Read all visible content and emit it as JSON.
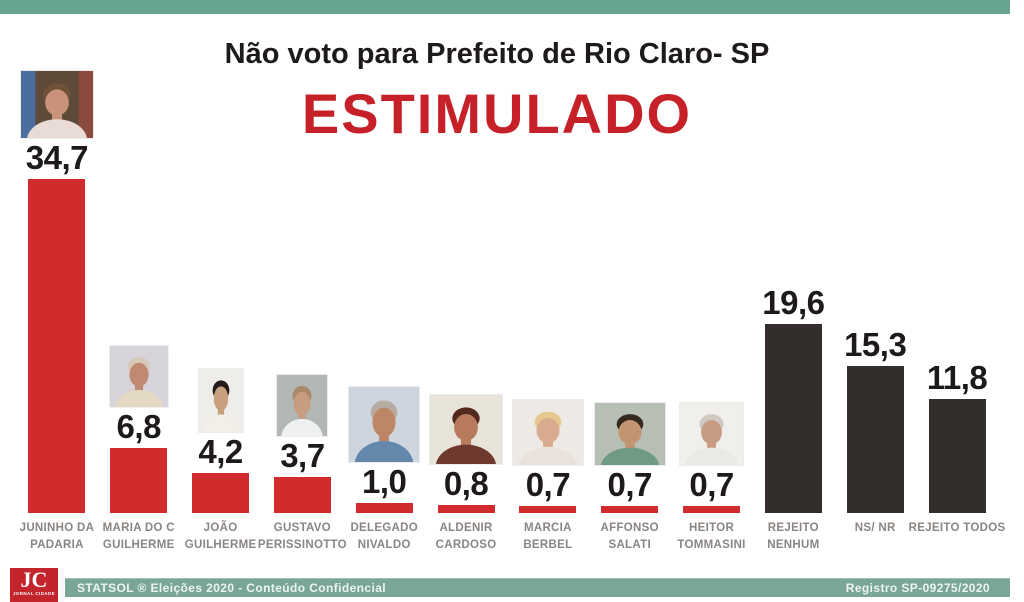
{
  "page": {
    "title": "Não voto para Prefeito de Rio Claro- SP",
    "subtitle": "ESTIMULADO"
  },
  "colors": {
    "band_teal": "#68a492",
    "footer_teal": "#79a699",
    "bar_red": "#d22b2e",
    "bar_dark": "#332e2b",
    "subtitle_red": "#c62128",
    "logo_red": "#c4242b",
    "name_gray": "#8b8582",
    "value_text": "#1d1a19"
  },
  "footer": {
    "left_text": "STATSOL ® Eleições 2020 - Conteúdo Confidencial",
    "right_text": "Registro SP-09275/2020",
    "logo_text": "JC",
    "logo_subtext": "JORNAL CIDADE"
  },
  "chart_data": {
    "type": "bar",
    "title": "Não voto para Prefeito de Rio Claro- SP",
    "subtitle": "ESTIMULADO",
    "unit": "percent",
    "ylim": [
      0,
      36
    ],
    "axis_shown": false,
    "grid": false,
    "legend": "none",
    "decimal_style": "comma",
    "categories": [
      "JUNINHO DA PADARIA",
      "MARIA DO C GUILHERME",
      "JOÃO GUILHERME",
      "GUSTAVO PERISSINOTTO",
      "DELEGADO NIVALDO",
      "ALDENIR CARDOSO",
      "MARCIA BERBEL",
      "AFFONSO SALATI",
      "HEITOR TOMMASINI",
      "REJEITO NENHUM",
      "NS/ NR",
      "REJEITO TODOS"
    ],
    "values": [
      34.7,
      6.8,
      4.2,
      3.7,
      1.0,
      0.8,
      0.7,
      0.7,
      0.7,
      19.6,
      15.3,
      11.8
    ],
    "bars": [
      {
        "label_lines": [
          "JUNINHO DA",
          "PADARIA"
        ],
        "value": 34.7,
        "value_label": "34,7",
        "color": "red",
        "photo": {
          "w": 72,
          "h": 67,
          "bg": "#5e4a38",
          "bg_left": "#4c6e9e",
          "bg_right": "#8a4a3c",
          "hair": "#6f5138",
          "skin": "#c9927a",
          "shirt": "#e9dcd6"
        }
      },
      {
        "label_lines": [
          "MARIA DO C",
          "GUILHERME"
        ],
        "value": 6.8,
        "value_label": "6,8",
        "color": "red",
        "photo": {
          "w": 58,
          "h": 61,
          "bg": "#d6d3da",
          "hair": "#d6c9b8",
          "skin": "#c08a70",
          "shirt": "#e4d9c4"
        }
      },
      {
        "label_lines": [
          "JOÃO",
          "GUILHERME"
        ],
        "value": 4.2,
        "value_label": "4,2",
        "color": "red",
        "photo": {
          "w": 44,
          "h": 63,
          "bg": "#efede9",
          "hair": "#241c18",
          "skin": "#c9a07e",
          "shirt": "#f2efe9"
        }
      },
      {
        "label_lines": [
          "GUSTAVO",
          "PERISSINOTTO"
        ],
        "value": 3.7,
        "value_label": "3,7",
        "color": "red",
        "photo": {
          "w": 50,
          "h": 61,
          "bg": "#b3b7b3",
          "hair": "#a8876a",
          "skin": "#c79d80",
          "shirt": "#eef0f1"
        }
      },
      {
        "label_lines": [
          "DELEGADO",
          "NIVALDO"
        ],
        "value": 1.0,
        "value_label": "1,0",
        "color": "red",
        "photo": {
          "w": 70,
          "h": 75,
          "bg": "#cdd6de",
          "hair": "#b5ada1",
          "skin": "#bd8666",
          "shirt": "#6488ab"
        }
      },
      {
        "label_lines": [
          "ALDENIR",
          "CARDOSO"
        ],
        "value": 0.8,
        "value_label": "0,8",
        "color": "red",
        "photo": {
          "w": 72,
          "h": 69,
          "bg": "#e9e4d9",
          "hair": "#53291f",
          "skin": "#b87a5c",
          "shirt": "#6e3a30"
        }
      },
      {
        "label_lines": [
          "MARCIA",
          "BERBEL"
        ],
        "value": 0.7,
        "value_label": "0,7",
        "color": "red",
        "photo": {
          "w": 70,
          "h": 65,
          "bg": "#edeae5",
          "hair": "#e5c98e",
          "skin": "#d9ab8e",
          "shirt": "#e9e2da"
        }
      },
      {
        "label_lines": [
          "AFFONSO",
          "SALATI"
        ],
        "value": 0.7,
        "value_label": "0,7",
        "color": "red",
        "photo": {
          "w": 70,
          "h": 62,
          "bg": "#b7bfb5",
          "hair": "#35291f",
          "skin": "#c29472",
          "shirt": "#6f9a84"
        }
      },
      {
        "label_lines": [
          "HEITOR",
          "TOMMASINI"
        ],
        "value": 0.7,
        "value_label": "0,7",
        "color": "red",
        "photo": {
          "w": 63,
          "h": 62,
          "bg": "#f1efec",
          "hair": "#cfc9c1",
          "skin": "#c79c82",
          "shirt": "#ebe9e5"
        }
      },
      {
        "label_lines": [
          "REJEITO",
          "NENHUM"
        ],
        "value": 19.6,
        "value_label": "19,6",
        "color": "dark",
        "photo": null
      },
      {
        "label_lines": [
          "NS/ NR"
        ],
        "value": 15.3,
        "value_label": "15,3",
        "color": "dark",
        "photo": null
      },
      {
        "label_lines": [
          "REJEITO TODOS"
        ],
        "value": 11.8,
        "value_label": "11,8",
        "color": "dark",
        "photo": null
      }
    ]
  }
}
